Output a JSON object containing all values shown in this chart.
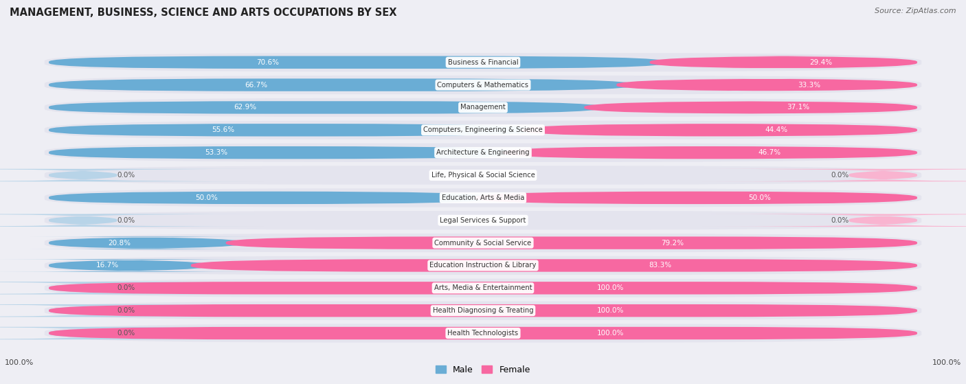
{
  "title": "MANAGEMENT, BUSINESS, SCIENCE AND ARTS OCCUPATIONS BY SEX",
  "source": "Source: ZipAtlas.com",
  "categories": [
    "Business & Financial",
    "Computers & Mathematics",
    "Management",
    "Computers, Engineering & Science",
    "Architecture & Engineering",
    "Life, Physical & Social Science",
    "Education, Arts & Media",
    "Legal Services & Support",
    "Community & Social Service",
    "Education Instruction & Library",
    "Arts, Media & Entertainment",
    "Health Diagnosing & Treating",
    "Health Technologists"
  ],
  "male_pct": [
    70.6,
    66.7,
    62.9,
    55.6,
    53.3,
    0.0,
    50.0,
    0.0,
    20.8,
    16.7,
    0.0,
    0.0,
    0.0
  ],
  "female_pct": [
    29.4,
    33.3,
    37.1,
    44.4,
    46.7,
    0.0,
    50.0,
    0.0,
    79.2,
    83.3,
    100.0,
    100.0,
    100.0
  ],
  "male_color": "#6aadd5",
  "male_color_light": "#b8d4e8",
  "female_color": "#f768a1",
  "female_color_light": "#f9b4d0",
  "bg_color": "#eeeef4",
  "bar_bg_color": "#e8e8f0",
  "row_bg_color": "#e4e4ee",
  "white": "#ffffff",
  "dark_text": "#555555",
  "white_text": "#ffffff",
  "figsize": [
    14.06,
    5.59
  ],
  "dpi": 100
}
